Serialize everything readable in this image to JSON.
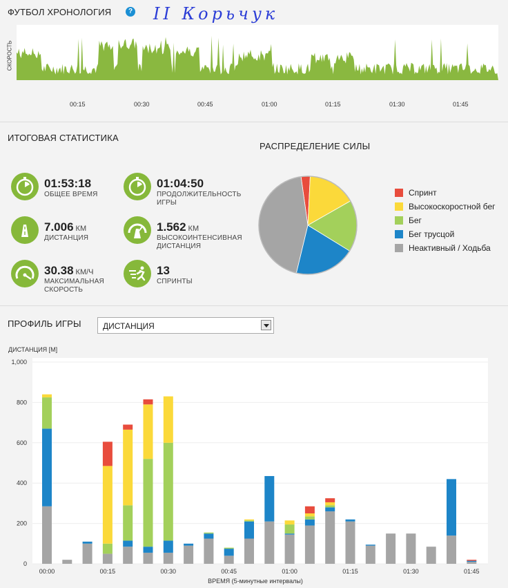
{
  "header": {
    "title": "ФУТБОЛ ХРОНОЛОГИЯ",
    "help_icon": "?",
    "handwritten_note": "II Корьчук"
  },
  "timeline": {
    "ylabel": "СКОРОСТЬ",
    "ticks": [
      "00:15",
      "00:30",
      "00:45",
      "01:00",
      "01:15",
      "01:30",
      "01:45"
    ],
    "color": "#8ab840"
  },
  "summary": {
    "title": "ИТОГОВАЯ СТАТИСТИКА",
    "stats": [
      {
        "icon": "stopwatch-icon",
        "value": "01:53:18",
        "unit": "",
        "label": "ОБЩЕЕ ВРЕМЯ"
      },
      {
        "icon": "stopwatch-icon",
        "value": "01:04:50",
        "unit": "",
        "label": "ПРОДОЛЖИТЕЛЬНОСТЬ ИГРЫ"
      },
      {
        "icon": "road-icon",
        "value": "7.006",
        "unit": "КМ",
        "label": "ДИСТАНЦИЯ"
      },
      {
        "icon": "road-speed-icon",
        "value": "1.562",
        "unit": "КМ",
        "label": "ВЫСОКОИНТЕНСИВНАЯ ДИСТАНЦИЯ"
      },
      {
        "icon": "speedometer-icon",
        "value": "30.38",
        "unit": "КМ/Ч",
        "label": "МАКСИМАЛЬНАЯ СКОРОСТЬ"
      },
      {
        "icon": "sprint-icon",
        "value": "13",
        "unit": "",
        "label": "СПРИНТЫ"
      }
    ]
  },
  "power": {
    "title": "РАСПРЕДЕЛЕНИЕ СИЛЫ",
    "legend": [
      {
        "label": "Спринт",
        "color": "#e84c3d"
      },
      {
        "label": "Высокоскоростной бег",
        "color": "#fbd93a"
      },
      {
        "label": "Бег",
        "color": "#a3d05b"
      },
      {
        "label": "Бег трусцой",
        "color": "#1d85c8"
      },
      {
        "label": "Неактивный / Ходьба",
        "color": "#a5a5a5"
      }
    ]
  },
  "profile": {
    "title": "ПРОФИЛЬ ИГРЫ",
    "selected": "ДИСТАНЦИЯ"
  },
  "chart_data": [
    {
      "type": "pie",
      "title": "РАСПРЕДЕЛЕНИЕ СИЛЫ",
      "labels": [
        "Спринт",
        "Высокоскоростной бег",
        "Бег",
        "Бег трусцой",
        "Неактивный / Ходьба"
      ],
      "values": [
        3,
        16,
        17,
        20,
        44
      ],
      "colors": [
        "#e84c3d",
        "#fbd93a",
        "#a3d05b",
        "#1d85c8",
        "#a5a5a5"
      ]
    },
    {
      "type": "bar",
      "stacked": true,
      "ylabel": "ДИСТАНЦИЯ [М]",
      "xlabel": "ВРЕМЯ (5-минутные интервалы)",
      "ylim": [
        0,
        1000
      ],
      "yticks": [
        "0",
        "200",
        "400",
        "600",
        "800",
        "1,000"
      ],
      "xticks": [
        "00:00",
        "00:15",
        "00:30",
        "00:45",
        "01:00",
        "01:15",
        "01:30",
        "01:45"
      ],
      "grid": true,
      "series": [
        {
          "name": "Неактивный / Ходьба",
          "color": "#a5a5a5",
          "values": [
            285,
            20,
            100,
            50,
            85,
            55,
            55,
            90,
            125,
            40,
            125,
            210,
            145,
            190,
            260,
            210,
            90,
            150,
            150,
            85,
            140,
            10
          ]
        },
        {
          "name": "Бег трусцой",
          "color": "#1d85c8",
          "values": [
            385,
            0,
            10,
            0,
            30,
            30,
            60,
            10,
            25,
            35,
            85,
            225,
            5,
            30,
            20,
            10,
            5,
            0,
            0,
            0,
            280,
            5
          ]
        },
        {
          "name": "Бег",
          "color": "#a3d05b",
          "values": [
            155,
            0,
            0,
            50,
            175,
            435,
            485,
            0,
            5,
            5,
            5,
            0,
            45,
            15,
            10,
            0,
            0,
            0,
            0,
            0,
            0,
            0
          ]
        },
        {
          "name": "Высокоскоростной бег",
          "color": "#fbd93a",
          "values": [
            15,
            0,
            0,
            385,
            375,
            270,
            230,
            0,
            0,
            0,
            5,
            0,
            20,
            15,
            15,
            0,
            0,
            0,
            0,
            0,
            0,
            0
          ]
        },
        {
          "name": "Спринт",
          "color": "#e84c3d",
          "values": [
            0,
            0,
            0,
            120,
            25,
            25,
            0,
            0,
            0,
            0,
            0,
            0,
            0,
            35,
            20,
            0,
            0,
            0,
            0,
            0,
            0,
            5
          ]
        }
      ]
    }
  ]
}
